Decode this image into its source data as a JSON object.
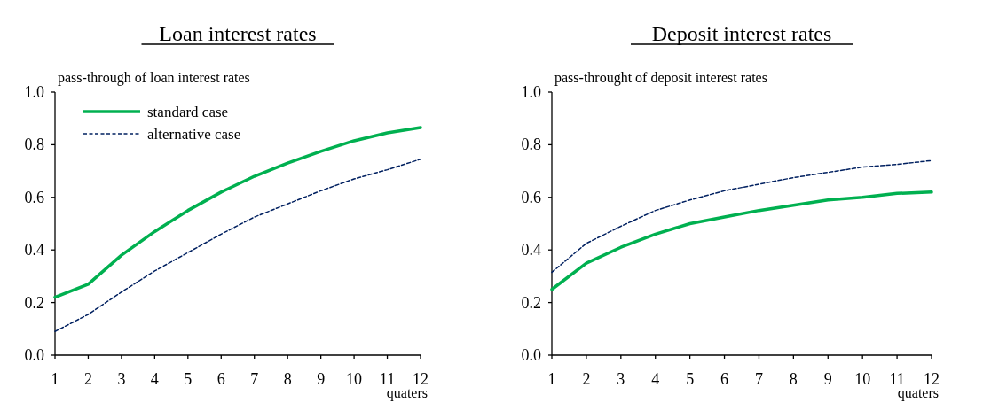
{
  "chart_data": [
    {
      "type": "line",
      "title": "Loan interest rates",
      "ylabel": "pass-through of loan interest rates",
      "xlabel": "quaters",
      "x": [
        1,
        2,
        3,
        4,
        5,
        6,
        7,
        8,
        9,
        10,
        11,
        12
      ],
      "xlim": [
        1,
        12
      ],
      "xticks": [
        1,
        2,
        3,
        4,
        5,
        6,
        7,
        8,
        9,
        10,
        11,
        12
      ],
      "ylim": [
        0,
        1
      ],
      "yticks": [
        {
          "value": 0,
          "label": "0.0"
        },
        {
          "value": 0.2,
          "label": "0.2"
        },
        {
          "value": 0.4,
          "label": "0.4"
        },
        {
          "value": 0.6,
          "label": "0.6"
        },
        {
          "value": 0.8,
          "label": "0.8"
        },
        {
          "value": 1,
          "label": "1.0"
        }
      ],
      "legend": "top left",
      "grid": false,
      "series": [
        {
          "name": "standard case",
          "color": "#00b050",
          "line_style": "solid",
          "values": [
            0.22,
            0.27,
            0.38,
            0.47,
            0.55,
            0.62,
            0.68,
            0.73,
            0.775,
            0.815,
            0.845,
            0.865
          ]
        },
        {
          "name": "alternative case",
          "color": "#002060",
          "line_style": "dashed",
          "values": [
            0.09,
            0.155,
            0.24,
            0.32,
            0.39,
            0.46,
            0.525,
            0.575,
            0.625,
            0.67,
            0.705,
            0.745
          ]
        }
      ]
    },
    {
      "type": "line",
      "title": "Deposit interest rates",
      "ylabel": "pass-throught of deposit interest rates",
      "xlabel": "quaters",
      "x": [
        1,
        2,
        3,
        4,
        5,
        6,
        7,
        8,
        9,
        10,
        11,
        12
      ],
      "xlim": [
        1,
        12
      ],
      "xticks": [
        1,
        2,
        3,
        4,
        5,
        6,
        7,
        8,
        9,
        10,
        11,
        12
      ],
      "ylim": [
        0,
        1
      ],
      "yticks": [
        {
          "value": 0,
          "label": "0.0"
        },
        {
          "value": 0.2,
          "label": "0.2"
        },
        {
          "value": 0.4,
          "label": "0.4"
        },
        {
          "value": 0.6,
          "label": "0.6"
        },
        {
          "value": 0.8,
          "label": "0.8"
        },
        {
          "value": 1,
          "label": "1.0"
        }
      ],
      "legend": false,
      "grid": false,
      "series": [
        {
          "color": "#00b050",
          "line_style": "solid",
          "values": [
            0.25,
            0.35,
            0.41,
            0.46,
            0.5,
            0.525,
            0.55,
            0.57,
            0.59,
            0.6,
            0.615,
            0.62
          ]
        },
        {
          "color": "#002060",
          "line_style": "dashed",
          "values": [
            0.315,
            0.425,
            0.49,
            0.55,
            0.59,
            0.625,
            0.65,
            0.675,
            0.695,
            0.715,
            0.725,
            0.74
          ]
        }
      ]
    }
  ]
}
